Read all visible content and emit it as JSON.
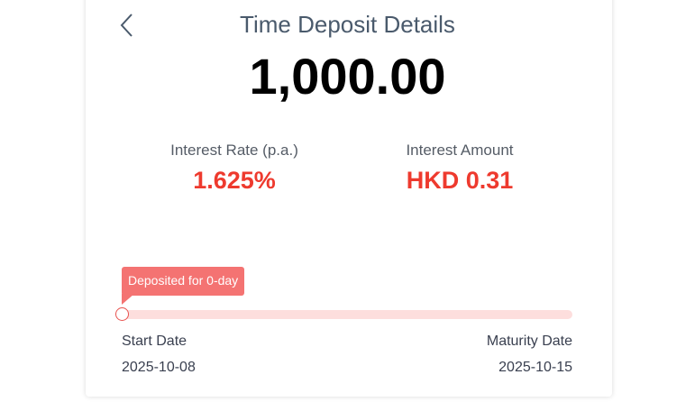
{
  "header": {
    "title": "Time Deposit Details",
    "back_icon": "chevron-left-icon"
  },
  "amount": "1,000.00",
  "interest_rate": {
    "label": "Interest Rate (p.a.)",
    "value": "1.625%"
  },
  "interest_amount": {
    "label": "Interest Amount",
    "value": "HKD 0.31"
  },
  "progress": {
    "tooltip": "Deposited for 0-day",
    "fraction": 0
  },
  "start": {
    "label": "Start Date",
    "value": "2025-10-08"
  },
  "maturity": {
    "label": "Maturity Date",
    "value": "2025-10-15"
  },
  "colors": {
    "accent": "#ee3a2e",
    "tooltip": "#f47372",
    "track": "#fddedd"
  }
}
